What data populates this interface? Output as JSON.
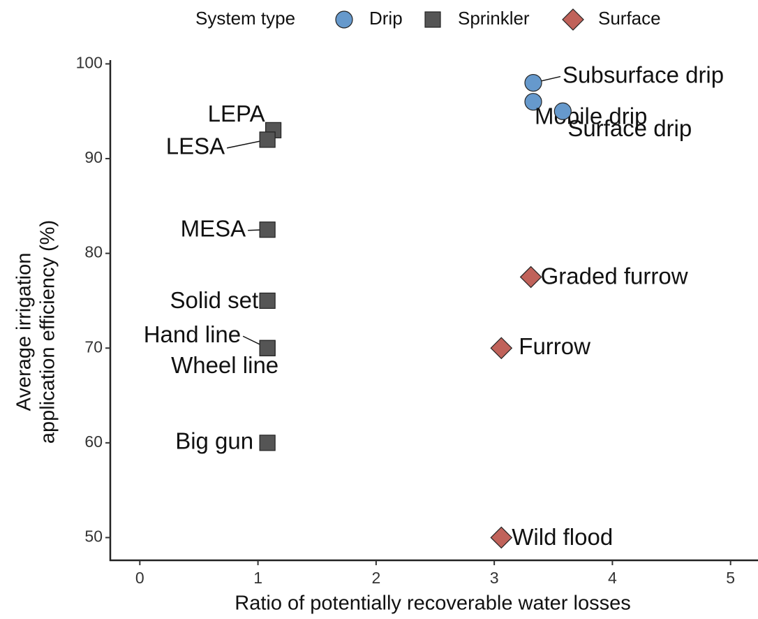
{
  "chart_data": {
    "type": "scatter",
    "xlabel": "Ratio of potentially recoverable water losses",
    "ylabel": [
      "Average irrigation",
      "application efficiency (%)"
    ],
    "legend_title": "System type",
    "legend": "top",
    "xlim": [
      -0.25,
      5.25
    ],
    "xticks": [
      0,
      1,
      2,
      3,
      4,
      5
    ],
    "ylim": [
      47.6,
      100.4
    ],
    "yticks": [
      50,
      60,
      70,
      80,
      90,
      100
    ],
    "series": [
      {
        "name": "Drip",
        "color": "#6699cc",
        "marker": "circle",
        "labels": [
          "Subsurface drip",
          "Mobile drip",
          "Surface drip"
        ],
        "x": [
          3.33,
          3.33,
          3.58
        ],
        "values": [
          98,
          96,
          95
        ]
      },
      {
        "name": "Sprinkler",
        "color": "#555555",
        "marker": "square",
        "labels": [
          "LEPA",
          "LESA",
          "MESA",
          "Solid set",
          "Hand line",
          "Wheel line",
          "Big gun"
        ],
        "x": [
          1.13,
          1.08,
          1.08,
          1.08,
          1.08,
          1.08,
          1.08
        ],
        "values": [
          93,
          92,
          82.5,
          75,
          70,
          70,
          60
        ]
      },
      {
        "name": "Surface",
        "color": "#c0625a",
        "marker": "diamond",
        "labels": [
          "Graded furrow",
          "Furrow",
          "Wild flood"
        ],
        "x": [
          3.31,
          3.06,
          3.06
        ],
        "values": [
          77.5,
          70,
          50
        ]
      }
    ]
  }
}
